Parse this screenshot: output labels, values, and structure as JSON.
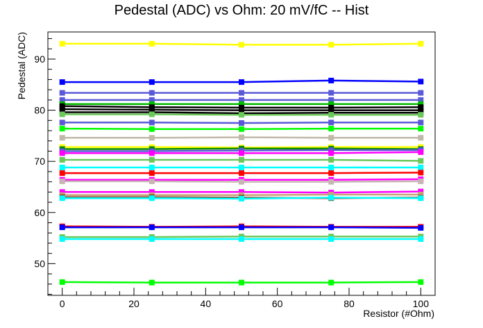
{
  "chart_data": {
    "type": "line",
    "title": "Pedestal (ADC) vs Ohm: 20 mV/fC -- Hist",
    "xlabel": "Resistor (#Ohm)",
    "ylabel": "Pedestal (ADC)",
    "xlim": [
      -4,
      104
    ],
    "ylim": [
      43.8,
      95.3
    ],
    "x": [
      0,
      25,
      50,
      75,
      100
    ],
    "x_ticks": [
      0,
      20,
      40,
      60,
      80,
      100
    ],
    "y_ticks": [
      50,
      60,
      70,
      80,
      90
    ],
    "x_tick_labels": [
      "0",
      "20",
      "40",
      "60",
      "80",
      "100"
    ],
    "y_tick_labels": [
      "50",
      "60",
      "70",
      "80",
      "90"
    ],
    "grid": false,
    "marker": "square",
    "series": [
      {
        "color": "#ffff00",
        "values": [
          93.0,
          93.0,
          92.8,
          92.8,
          93.0
        ]
      },
      {
        "color": "#0000ff",
        "values": [
          85.5,
          85.5,
          85.5,
          85.8,
          85.6
        ]
      },
      {
        "color": "#5a5ad8",
        "values": [
          83.4,
          83.4,
          83.4,
          83.4,
          83.4
        ]
      },
      {
        "color": "#5a5ad8",
        "values": [
          82.0,
          82.0,
          82.0,
          82.0,
          82.0
        ]
      },
      {
        "color": "#00bb00",
        "values": [
          81.2,
          81.2,
          81.2,
          81.2,
          81.2
        ]
      },
      {
        "color": "#000000",
        "values": [
          80.8,
          80.6,
          80.5,
          80.5,
          80.6
        ]
      },
      {
        "color": "#000000",
        "values": [
          80.2,
          80.1,
          80.0,
          80.0,
          80.0
        ]
      },
      {
        "color": "#000000",
        "values": [
          79.6,
          79.6,
          79.4,
          79.5,
          79.5
        ]
      },
      {
        "color": "#6bc85a",
        "values": [
          79.2,
          79.2,
          79.1,
          79.1,
          79.1
        ]
      },
      {
        "color": "#5a5ad8",
        "values": [
          77.6,
          77.6,
          77.5,
          77.6,
          77.6
        ]
      },
      {
        "color": "#00ff00",
        "values": [
          76.4,
          76.3,
          76.3,
          76.4,
          76.4
        ]
      },
      {
        "color": "#c0b8a8",
        "values": [
          74.6,
          74.6,
          74.7,
          74.6,
          74.6
        ]
      },
      {
        "color": "#ffff00",
        "values": [
          72.8,
          72.8,
          72.7,
          72.8,
          72.8
        ]
      },
      {
        "color": "#008800",
        "values": [
          72.4,
          72.4,
          72.5,
          72.5,
          72.4
        ]
      },
      {
        "color": "#5a5ad8",
        "values": [
          72.0,
          72.0,
          72.1,
          72.2,
          72.2
        ]
      },
      {
        "color": "#ff00ff",
        "values": [
          71.6,
          71.6,
          71.6,
          71.6,
          71.8
        ]
      },
      {
        "color": "#6bc85a",
        "values": [
          70.3,
          70.3,
          70.3,
          70.3,
          70.1
        ]
      },
      {
        "color": "#00ffff",
        "values": [
          68.8,
          68.8,
          68.8,
          68.8,
          68.8
        ]
      },
      {
        "color": "#ff0000",
        "values": [
          67.7,
          67.7,
          67.7,
          67.7,
          67.8
        ]
      },
      {
        "color": "#ff00ff",
        "values": [
          66.4,
          66.4,
          66.4,
          66.4,
          66.5
        ]
      },
      {
        "color": "#c8b4b4",
        "values": [
          66.1,
          66.1,
          66.0,
          66.0,
          66.1
        ]
      },
      {
        "color": "#ff00ff",
        "values": [
          64.0,
          64.0,
          64.0,
          63.9,
          64.1
        ]
      },
      {
        "color": "#c8a078",
        "values": [
          63.4,
          63.4,
          63.4,
          63.5,
          63.5
        ]
      },
      {
        "color": "#884422",
        "values": [
          63.0,
          63.0,
          62.9,
          62.8,
          62.9
        ]
      },
      {
        "color": "#00ffff",
        "values": [
          62.8,
          62.8,
          62.7,
          62.9,
          62.8
        ]
      },
      {
        "color": "#ff0000",
        "values": [
          57.3,
          57.2,
          57.3,
          57.2,
          57.2
        ]
      },
      {
        "color": "#0000ff",
        "values": [
          57.1,
          57.1,
          57.1,
          57.1,
          57.0
        ]
      },
      {
        "color": "#6bc85a",
        "values": [
          55.2,
          55.2,
          55.3,
          55.3,
          55.3
        ]
      },
      {
        "color": "#00ffff",
        "values": [
          54.8,
          54.8,
          54.8,
          54.8,
          54.8
        ]
      },
      {
        "color": "#00ff00",
        "values": [
          46.4,
          46.3,
          46.3,
          46.3,
          46.4
        ]
      }
    ]
  }
}
